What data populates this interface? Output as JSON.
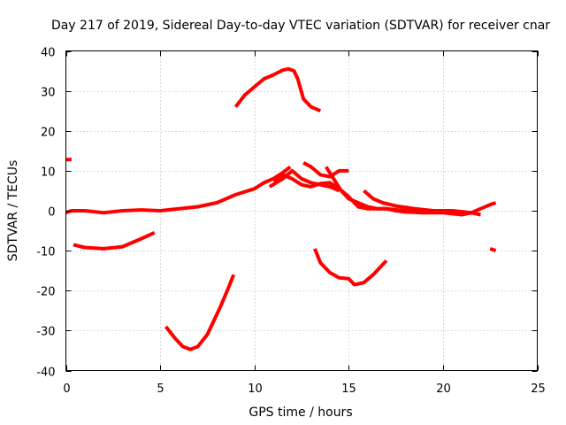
{
  "chart_data": {
    "type": "line",
    "title": "Day 217 of 2019, Sidereal Day-to-day VTEC variation (SDTVAR) for receiver cnar",
    "xlabel": "GPS time / hours",
    "ylabel": "SDTVAR / TECUs",
    "xlim": [
      0,
      25
    ],
    "ylim": [
      -40,
      40
    ],
    "xticks": [
      0,
      5,
      10,
      15,
      20,
      25
    ],
    "yticks": [
      -40,
      -30,
      -20,
      -10,
      0,
      10,
      20,
      30,
      40
    ],
    "grid": true,
    "color": "#ff0000",
    "series": [
      {
        "name": "pass-a",
        "x": [
          0.0,
          0.3
        ],
        "y": [
          12.8,
          12.8
        ]
      },
      {
        "name": "pass-b",
        "x": [
          0.0,
          0.3,
          1.0,
          2.0,
          3.0,
          4.0,
          5.0,
          6.0,
          7.0,
          8.0,
          9.0,
          10.0,
          10.5,
          11.0,
          11.5,
          11.9
        ],
        "y": [
          -0.5,
          0.0,
          0.0,
          -0.5,
          0.0,
          0.2,
          0.0,
          0.5,
          1.0,
          2.0,
          4.0,
          5.5,
          7.0,
          8.0,
          9.5,
          11.0
        ]
      },
      {
        "name": "pass-c",
        "x": [
          0.4,
          1.0,
          2.0,
          3.0,
          4.0,
          4.7
        ],
        "y": [
          -8.5,
          -9.2,
          -9.5,
          -9.0,
          -7.0,
          -5.5
        ]
      },
      {
        "name": "pass-d",
        "x": [
          5.3,
          5.8,
          6.2,
          6.6,
          7.0,
          7.5,
          7.8,
          8.2,
          8.6,
          8.9
        ],
        "y": [
          -29.0,
          -32.0,
          -34.0,
          -34.7,
          -34.0,
          -31.0,
          -28.0,
          -24.0,
          -19.5,
          -16.0
        ]
      },
      {
        "name": "pass-e",
        "x": [
          9.0,
          9.5,
          10.0,
          10.5,
          11.0,
          11.5,
          11.8,
          12.1,
          12.3,
          12.6,
          13.0,
          13.5
        ],
        "y": [
          26.0,
          29.0,
          31.0,
          33.0,
          34.0,
          35.2,
          35.5,
          35.0,
          33.0,
          28.0,
          26.0,
          25.0
        ]
      },
      {
        "name": "pass-f",
        "x": [
          10.8,
          11.5,
          12.0,
          12.5,
          13.0,
          13.5,
          14.0,
          14.5
        ],
        "y": [
          6.0,
          8.0,
          10.0,
          8.0,
          7.0,
          6.5,
          6.0,
          5.0
        ]
      },
      {
        "name": "pass-g",
        "x": [
          11.0,
          11.5,
          12.0,
          12.5,
          13.0,
          13.5,
          14.0,
          14.5,
          15.0,
          15.5,
          16.0,
          17.0,
          18.0,
          19.0,
          20.0,
          21.0,
          21.5,
          22.0,
          22.5,
          22.8
        ],
        "y": [
          7.5,
          9.0,
          8.0,
          6.5,
          6.0,
          6.8,
          7.0,
          5.5,
          3.5,
          1.0,
          0.5,
          0.5,
          0.0,
          -0.5,
          -0.5,
          -1.0,
          -0.5,
          0.5,
          1.5,
          2.0
        ]
      },
      {
        "name": "pass-h",
        "x": [
          13.8,
          14.2,
          14.6,
          15.0,
          15.5,
          16.0,
          16.5,
          17.0,
          17.5,
          18.0,
          19.0
        ],
        "y": [
          11.0,
          8.0,
          5.0,
          3.0,
          2.0,
          1.0,
          0.5,
          0.5,
          0.0,
          -0.3,
          -0.5
        ]
      },
      {
        "name": "pass-i",
        "x": [
          12.6,
          13.0,
          13.5,
          14.0,
          14.5,
          15.0
        ],
        "y": [
          12.0,
          11.0,
          9.0,
          8.5,
          10.0,
          10.0
        ]
      },
      {
        "name": "pass-j",
        "x": [
          15.8,
          16.3,
          16.8,
          17.5,
          18.5,
          19.5,
          20.5,
          21.5,
          22.0
        ],
        "y": [
          5.0,
          3.0,
          2.0,
          1.2,
          0.5,
          0.0,
          0.0,
          -0.5,
          -1.0
        ]
      },
      {
        "name": "pass-k",
        "x": [
          13.2,
          13.5,
          14.0,
          14.5,
          15.0,
          15.3,
          15.8,
          16.3,
          17.0
        ],
        "y": [
          -9.5,
          -13.0,
          -15.5,
          -16.8,
          -17.0,
          -18.5,
          -18.0,
          -16.0,
          -12.5
        ]
      },
      {
        "name": "pass-l",
        "x": [
          22.5,
          22.8
        ],
        "y": [
          -9.5,
          -10.0
        ]
      }
    ]
  }
}
